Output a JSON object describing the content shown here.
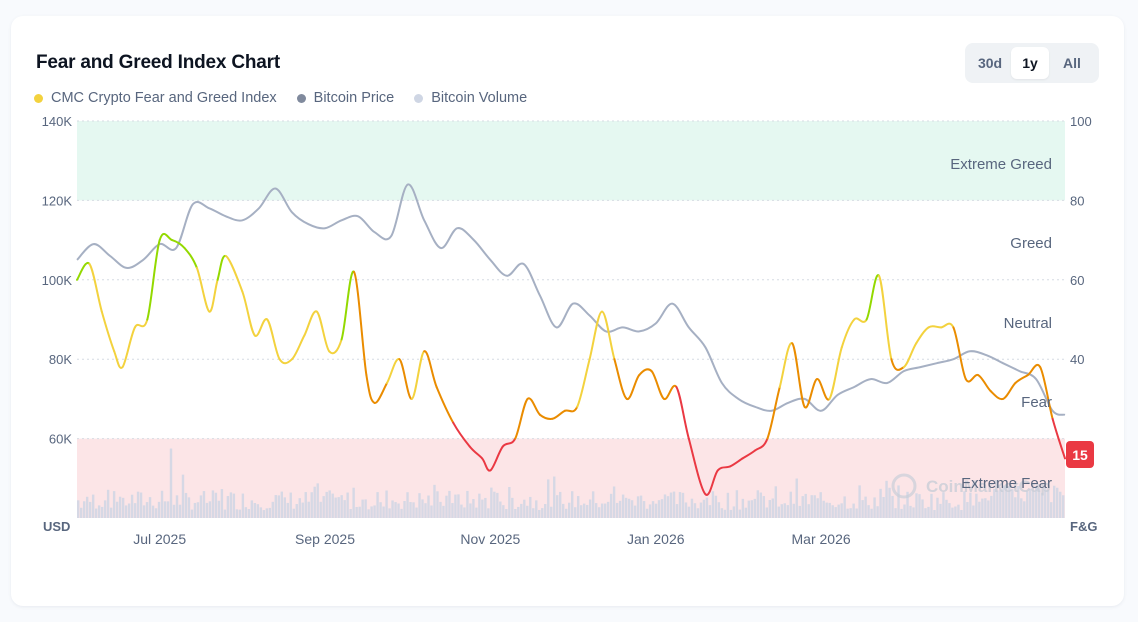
{
  "title": "Fear and Greed Index Chart",
  "range_buttons": [
    "30d",
    "1y",
    "All"
  ],
  "range_active": "1y",
  "legend": [
    {
      "label": "CMC Crypto Fear and Greed Index",
      "color": "#f3d23e"
    },
    {
      "label": "Bitcoin Price",
      "color": "#808a9d"
    },
    {
      "label": "Bitcoin Volume",
      "color": "#cfd6e4"
    }
  ],
  "watermark": "CoinMarketCap",
  "chart_data": {
    "type": "line",
    "x_ticks": [
      {
        "label": "Jul 2025",
        "x": 1.0
      },
      {
        "label": "Sep 2025",
        "x": 3.0
      },
      {
        "label": "Nov 2025",
        "x": 5.0
      },
      {
        "label": "Jan 2026",
        "x": 7.0
      },
      {
        "label": "Mar 2026",
        "x": 9.0
      }
    ],
    "x_range": [
      0.0,
      11.95
    ],
    "y_left": {
      "unit_label": "USD",
      "ticks": [
        "60K",
        "80K",
        "100K",
        "120K",
        "140K"
      ],
      "values": [
        60000,
        80000,
        100000,
        120000,
        140000
      ],
      "range": [
        40000,
        140000
      ]
    },
    "y_right": {
      "unit_label": "F&G",
      "ticks": [
        "40",
        "60",
        "80",
        "100"
      ],
      "values": [
        40,
        60,
        80,
        100
      ],
      "range": [
        0,
        100
      ]
    },
    "zones": [
      {
        "label": "Extreme Greed",
        "from": 80,
        "to": 100,
        "color": "#e5f8f1"
      },
      {
        "label": "Greed",
        "from": 60,
        "to": 80,
        "color": ""
      },
      {
        "label": "Neutral",
        "from": 40,
        "to": 60,
        "color": ""
      },
      {
        "label": "Fear",
        "from": 20,
        "to": 40,
        "color": ""
      },
      {
        "label": "Extreme Fear",
        "from": 0,
        "to": 20,
        "color": "#fce5e7"
      }
    ],
    "fng_colors": {
      "extreme_fear": "#ea3943",
      "fear": "#ea8c00",
      "neutral": "#f3d23e",
      "greed": "#93d900",
      "extreme_greed": "#16c784"
    },
    "current_value": "15",
    "series": [
      {
        "name": "CMC Crypto Fear and Greed Index",
        "axis": "right",
        "x": [
          0.0,
          0.15,
          0.3,
          0.45,
          0.55,
          0.7,
          0.85,
          1.0,
          1.15,
          1.3,
          1.45,
          1.6,
          1.7,
          1.8,
          2.0,
          2.15,
          2.3,
          2.45,
          2.6,
          2.75,
          2.9,
          3.05,
          3.2,
          3.35,
          3.5,
          3.6,
          3.75,
          3.9,
          4.05,
          4.2,
          4.35,
          4.55,
          4.75,
          4.9,
          5.0,
          5.15,
          5.3,
          5.45,
          5.6,
          5.75,
          5.9,
          6.05,
          6.2,
          6.35,
          6.5,
          6.65,
          6.8,
          6.95,
          7.1,
          7.25,
          7.4,
          7.6,
          7.75,
          7.9,
          8.05,
          8.2,
          8.35,
          8.5,
          8.65,
          8.8,
          8.95,
          9.1,
          9.25,
          9.4,
          9.55,
          9.7,
          9.85,
          10.0,
          10.15,
          10.3,
          10.45,
          10.6,
          10.75,
          10.9,
          11.05,
          11.2,
          11.35,
          11.5,
          11.65,
          11.8,
          11.95
        ],
        "y": [
          60,
          64,
          52,
          42,
          38,
          48,
          50,
          70,
          70,
          68,
          63,
          52,
          60,
          66,
          57,
          46,
          50,
          40,
          40,
          46,
          52,
          42,
          45,
          62,
          36,
          29,
          34,
          40,
          30,
          42,
          33,
          24,
          18,
          15,
          12,
          18,
          20,
          30,
          26,
          25,
          27,
          28,
          40,
          52,
          40,
          30,
          36,
          37,
          30,
          33,
          20,
          6,
          12,
          13,
          15,
          17,
          20,
          33,
          44,
          28,
          35,
          30,
          43,
          50,
          50,
          61,
          40,
          38,
          44,
          48,
          48,
          48,
          35,
          36,
          32,
          30,
          34,
          36,
          38,
          25,
          15
        ],
        "colors": [
          "#93d900",
          "#93d900",
          "#f3d23e",
          "#f3d23e",
          "#f3d23e",
          "#f3d23e",
          "#f3d23e",
          "#93d900",
          "#93d900",
          "#93d900",
          "#93d900",
          "#f3d23e",
          "#f3d23e",
          "#93d900",
          "#f3d23e",
          "#f3d23e",
          "#f3d23e",
          "#f3d23e",
          "#f3d23e",
          "#f3d23e",
          "#f3d23e",
          "#f3d23e",
          "#f3d23e",
          "#93d900",
          "#ea8c00",
          "#ea8c00",
          "#ea8c00",
          "#f3d23e",
          "#ea8c00",
          "#f3d23e",
          "#ea8c00",
          "#ea8c00",
          "#ea3943",
          "#ea3943",
          "#ea3943",
          "#ea3943",
          "#ea3943",
          "#ea8c00",
          "#ea8c00",
          "#ea8c00",
          "#ea8c00",
          "#ea8c00",
          "#f3d23e",
          "#f3d23e",
          "#f3d23e",
          "#ea8c00",
          "#ea8c00",
          "#ea8c00",
          "#ea8c00",
          "#ea8c00",
          "#ea3943",
          "#ea3943",
          "#ea3943",
          "#ea3943",
          "#ea3943",
          "#ea3943",
          "#ea3943",
          "#ea8c00",
          "#f3d23e",
          "#ea8c00",
          "#ea8c00",
          "#ea8c00",
          "#f3d23e",
          "#f3d23e",
          "#f3d23e",
          "#93d900",
          "#f3d23e",
          "#ea8c00",
          "#f3d23e",
          "#f3d23e",
          "#f3d23e",
          "#f3d23e",
          "#ea8c00",
          "#ea8c00",
          "#ea8c00",
          "#ea8c00",
          "#ea8c00",
          "#ea8c00",
          "#ea8c00",
          "#ea8c00",
          "#ea3943"
        ]
      },
      {
        "name": "Bitcoin Price",
        "axis": "left",
        "color": "#a6b0c3",
        "x": [
          0.0,
          0.2,
          0.4,
          0.6,
          0.8,
          1.0,
          1.2,
          1.4,
          1.6,
          1.8,
          2.0,
          2.2,
          2.4,
          2.6,
          2.8,
          3.0,
          3.2,
          3.4,
          3.6,
          3.8,
          4.0,
          4.2,
          4.4,
          4.6,
          4.8,
          5.0,
          5.2,
          5.4,
          5.6,
          5.8,
          6.0,
          6.2,
          6.4,
          6.6,
          6.8,
          7.0,
          7.2,
          7.4,
          7.6,
          7.8,
          8.0,
          8.2,
          8.4,
          8.6,
          8.8,
          9.0,
          9.2,
          9.4,
          9.6,
          9.8,
          10.0,
          10.2,
          10.4,
          10.6,
          10.8,
          11.0,
          11.2,
          11.4,
          11.6,
          11.8,
          11.95
        ],
        "y": [
          105000,
          109000,
          106000,
          103000,
          105000,
          109000,
          108000,
          119000,
          118000,
          116000,
          115000,
          118000,
          123000,
          117000,
          114000,
          113000,
          115000,
          116000,
          112000,
          111000,
          124000,
          115000,
          108000,
          113000,
          110000,
          105000,
          101000,
          104000,
          96000,
          88000,
          94000,
          91000,
          87000,
          88000,
          87000,
          89000,
          94000,
          88000,
          83000,
          74000,
          70000,
          68000,
          67000,
          69000,
          70000,
          67000,
          71000,
          73000,
          75000,
          74000,
          77000,
          78000,
          79000,
          80000,
          82000,
          81000,
          79000,
          77000,
          75000,
          67000,
          66000
        ]
      },
      {
        "name": "Bitcoin Volume",
        "axis": "right",
        "color": "#cfd6e4",
        "note": "relative daily volume bars, scaled 0-20 on F&G axis",
        "peak_x": 1.15,
        "peak_y": 17.5
      }
    ]
  }
}
